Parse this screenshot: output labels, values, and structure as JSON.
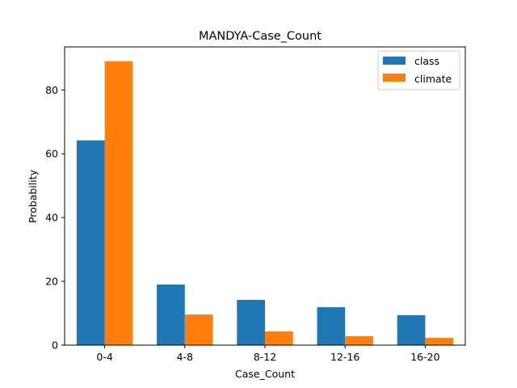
{
  "chart_data": {
    "type": "bar",
    "title": "MANDYA-Case_Count",
    "xlabel": "Case_Count",
    "ylabel": "Probability",
    "categories": [
      "0-4",
      "4-8",
      "8-12",
      "12-16",
      "16-20"
    ],
    "series": [
      {
        "name": "class",
        "color": "#1f77b4",
        "values": [
          64.2,
          19.0,
          14.2,
          11.9,
          9.4
        ]
      },
      {
        "name": "climate",
        "color": "#ff7f0e",
        "values": [
          89.0,
          9.6,
          4.3,
          2.8,
          2.3
        ]
      }
    ],
    "ylim": [
      0,
      93.5
    ],
    "yticks": [
      0,
      20,
      40,
      60,
      80
    ],
    "grid": false,
    "legend_position": "top-right"
  }
}
